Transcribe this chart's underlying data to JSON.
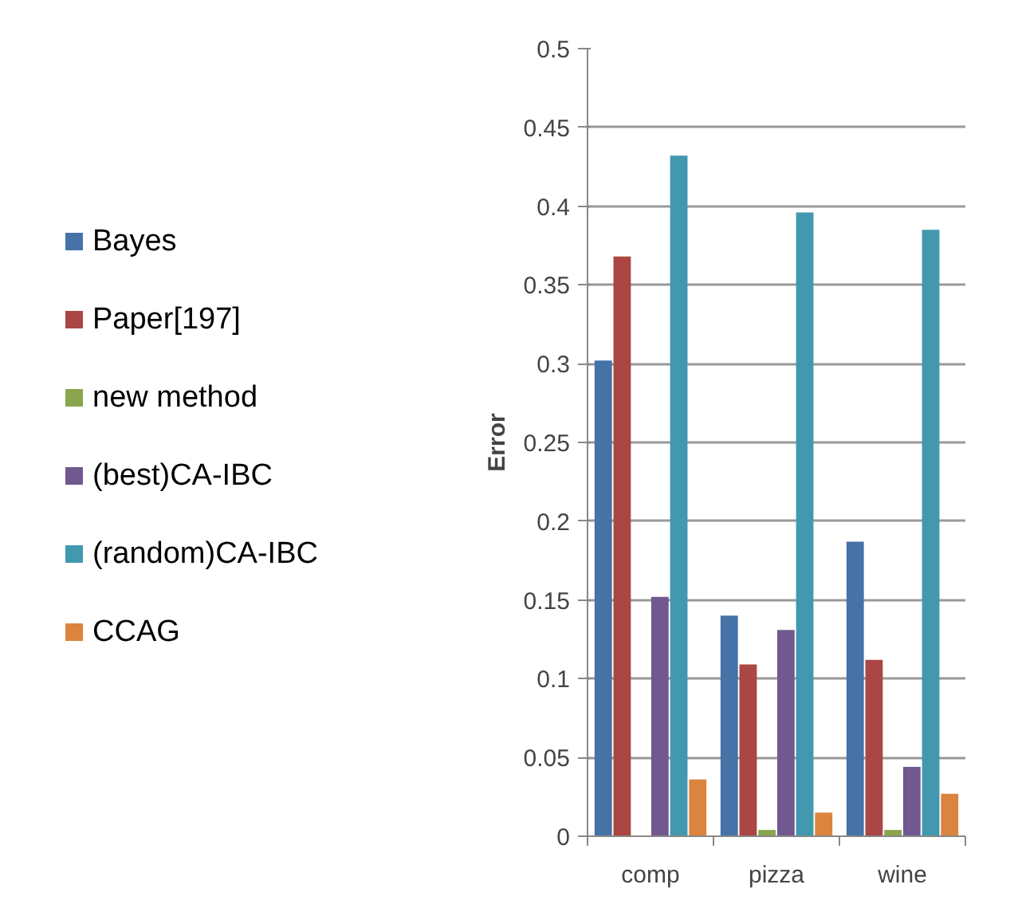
{
  "chart_data": {
    "type": "bar",
    "ylabel": "Error",
    "categories": [
      "comp",
      "pizza",
      "wine"
    ],
    "series": [
      {
        "name": "Bayes",
        "color": "#4572a7",
        "values": [
          0.302,
          0.14,
          0.187
        ]
      },
      {
        "name": "Paper[197]",
        "color": "#aa4643",
        "values": [
          0.368,
          0.109,
          0.112
        ]
      },
      {
        "name": "new method",
        "color": "#89a54e",
        "values": [
          0,
          0.004,
          0.004
        ]
      },
      {
        "name": "(best)CA-IBC",
        "color": "#71588f",
        "values": [
          0.152,
          0.131,
          0.044
        ]
      },
      {
        "name": "(random)CA-IBC",
        "color": "#4198af",
        "values": [
          0.432,
          0.396,
          0.385
        ]
      },
      {
        "name": "CCAG",
        "color": "#db843d",
        "values": [
          0.036,
          0.015,
          0.027
        ]
      }
    ],
    "ylim": [
      0,
      0.5
    ],
    "yticks": [
      0,
      0.05,
      0.1,
      0.15,
      0.2,
      0.25,
      0.3,
      0.35,
      0.4,
      0.45,
      0.5
    ],
    "grid": "y",
    "legend": "left"
  }
}
